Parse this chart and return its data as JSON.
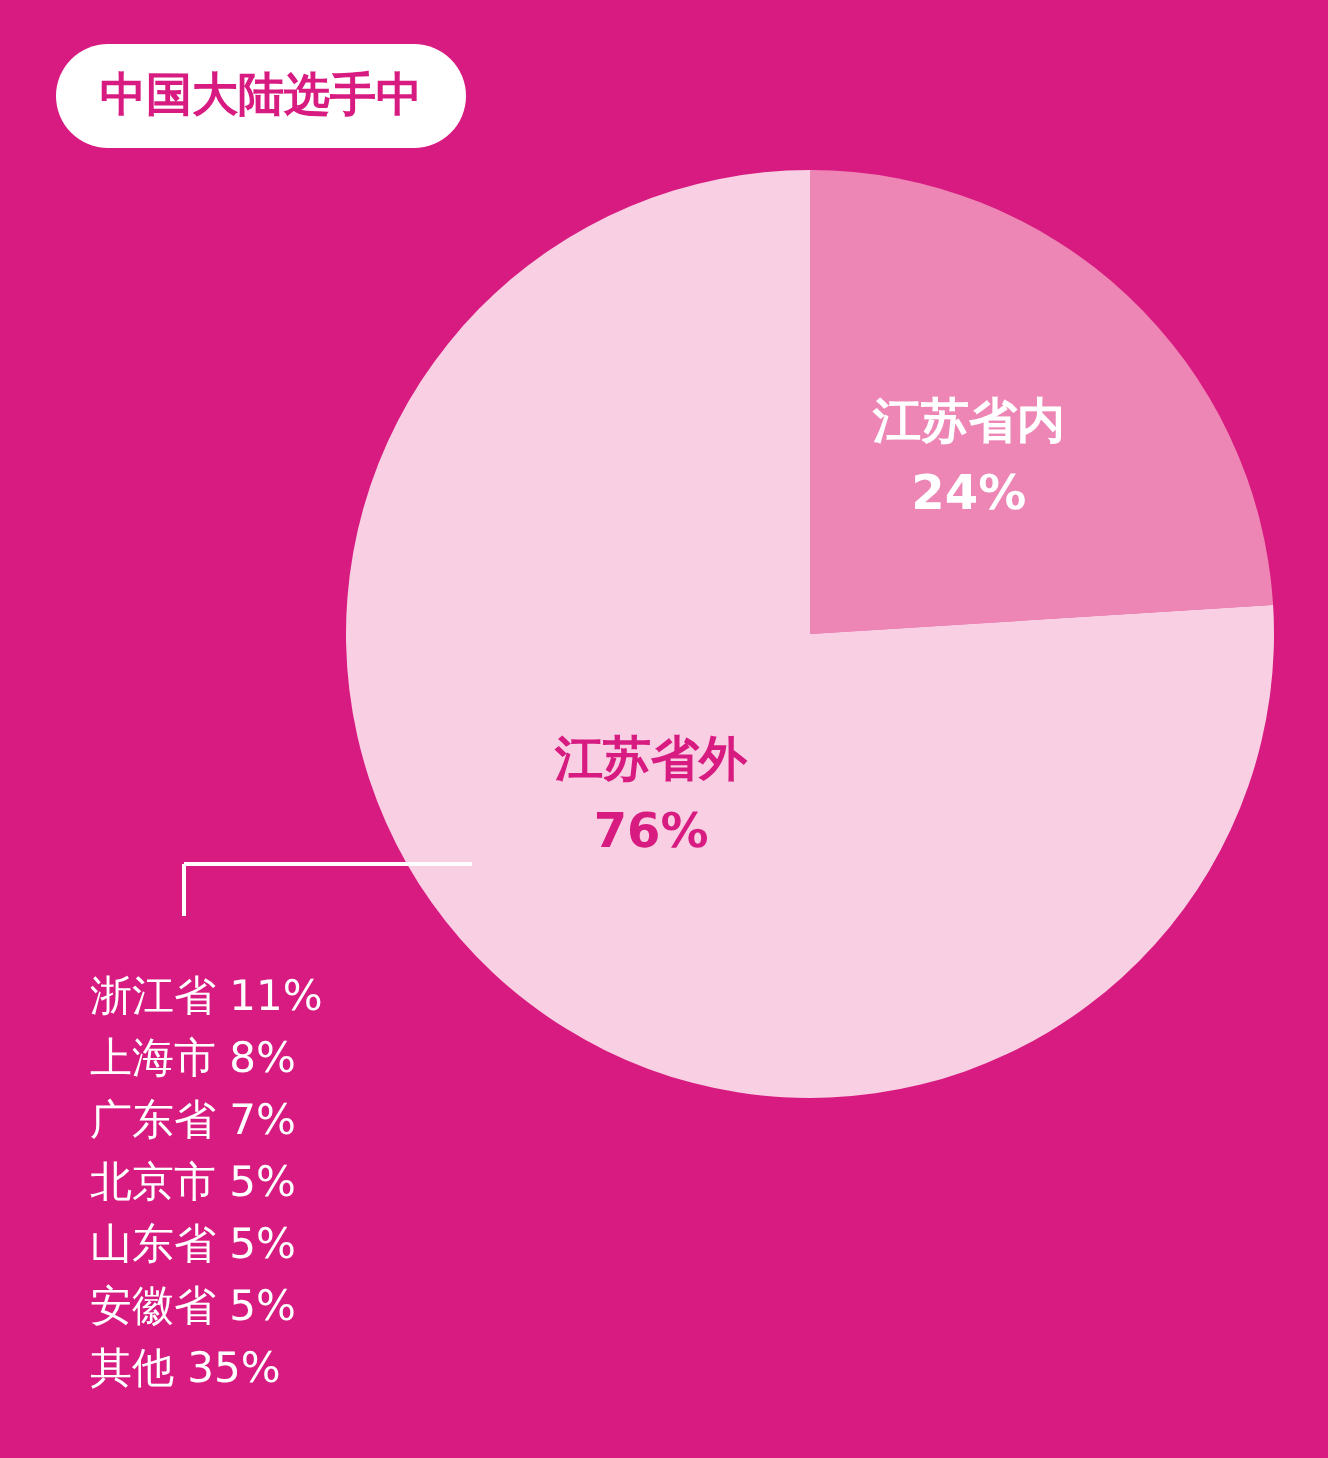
{
  "chart_data": {
    "type": "pie",
    "title": "中国大陆选手中",
    "categories": [
      "江苏省内",
      "江苏省外"
    ],
    "values": [
      24,
      76
    ],
    "value_labels": [
      "24%",
      "76%"
    ],
    "colors": [
      "#ee86b5",
      "#f9d0e3"
    ],
    "annotations": [
      "浙江省 11%",
      "上海市 8%",
      "广东省 7%",
      "北京市 5%",
      "山东省 5%",
      "安徽省 5%",
      "其他 35%"
    ]
  }
}
